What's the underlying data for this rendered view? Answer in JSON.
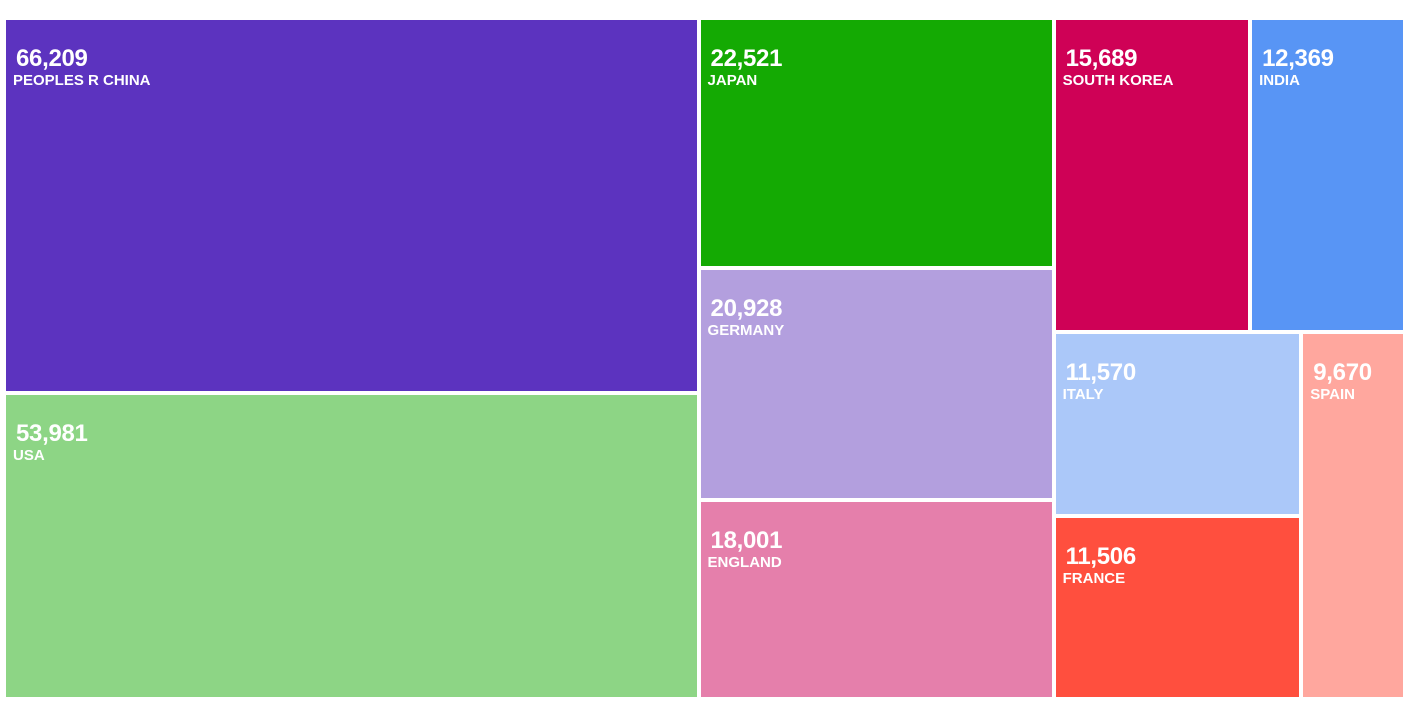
{
  "chart_data": {
    "type": "treemap",
    "items": [
      {
        "name": "PEOPLES R CHINA",
        "value": 66209,
        "value_label": "66,209",
        "color": "#5c33bf"
      },
      {
        "name": "USA",
        "value": 53981,
        "value_label": "53,981",
        "color": "#8dd585"
      },
      {
        "name": "JAPAN",
        "value": 22521,
        "value_label": "22,521",
        "color": "#14aa03"
      },
      {
        "name": "GERMANY",
        "value": 20928,
        "value_label": "20,928",
        "color": "#b39fde"
      },
      {
        "name": "ENGLAND",
        "value": 18001,
        "value_label": "18,001",
        "color": "#e57fab"
      },
      {
        "name": "SOUTH KOREA",
        "value": 15689,
        "value_label": "15,689",
        "color": "#cf0156"
      },
      {
        "name": "INDIA",
        "value": 12369,
        "value_label": "12,369",
        "color": "#5895f5"
      },
      {
        "name": "ITALY",
        "value": 11570,
        "value_label": "11,570",
        "color": "#abc8f9"
      },
      {
        "name": "FRANCE",
        "value": 11506,
        "value_label": "11,506",
        "color": "#ff4f3e"
      },
      {
        "name": "SPAIN",
        "value": 9670,
        "value_label": "9,670",
        "color": "#ffa79e"
      }
    ]
  }
}
